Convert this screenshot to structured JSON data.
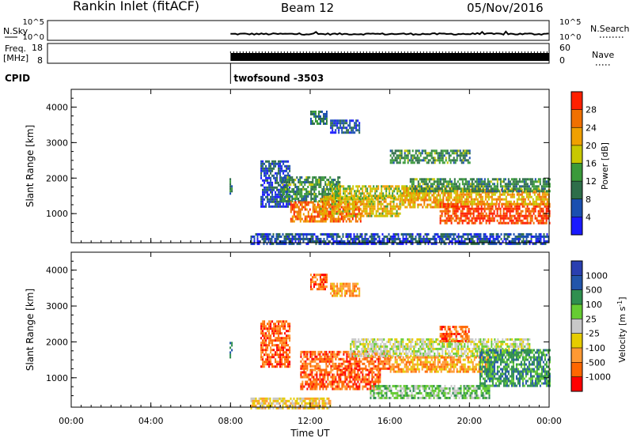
{
  "header": {
    "title": "Rankin Inlet (fitACF)",
    "beam": "Beam 12",
    "date": "05/Nov/2016"
  },
  "nsky_panel": {
    "left_label": "N.Sky",
    "right_label": "N.Search",
    "left_ticks": [
      "10^5",
      "10^0"
    ],
    "right_ticks": [
      "10^5",
      "10^0"
    ]
  },
  "freq_panel": {
    "left_label_1": "Freq.",
    "left_label_2": "[MHz]",
    "left_ticks": [
      "18",
      "8"
    ],
    "right_label": "Nave",
    "right_ticks": [
      "60",
      "0"
    ]
  },
  "cpid": {
    "label": "CPID",
    "value": "twofsound -3503"
  },
  "colors": {
    "power": [
      "#1a1aff",
      "#1a4fb0",
      "#2e6e4a",
      "#3a9a3a",
      "#c8c800",
      "#f0a000",
      "#f07000",
      "#ff2000"
    ],
    "velocity": [
      "#ff0000",
      "#ff6600",
      "#ff9933",
      "#e6cc00",
      "#c8c8c8",
      "#66cc33",
      "#2f8f4f",
      "#2255aa",
      "#2a3fb0"
    ]
  },
  "chart_data": [
    {
      "type": "heatmap",
      "name": "power",
      "ylabel": "Slant Range [km]",
      "xlabel": "",
      "xlim": [
        0,
        24
      ],
      "ylim": [
        180,
        4500
      ],
      "x_ticks": [
        0,
        4,
        8,
        12,
        16,
        20,
        24
      ],
      "y_ticks": [
        1000,
        2000,
        3000,
        4000
      ],
      "y_tick_labels": [
        "1000",
        "2000",
        "3000",
        "4000"
      ],
      "colorbar_label": "Power [dB]",
      "colorbar_ticks": [
        "4",
        "8",
        "12",
        "16",
        "20",
        "24",
        "28"
      ],
      "clim": [
        0,
        32
      ],
      "regions": [
        {
          "x": [
            7.95,
            8.1
          ],
          "y": [
            1550,
            2000
          ],
          "level": 10
        },
        {
          "x": [
            9.5,
            11.0
          ],
          "y": [
            1200,
            2500
          ],
          "level": 6
        },
        {
          "x": [
            10.5,
            13.5
          ],
          "y": [
            1350,
            2050
          ],
          "level": 12
        },
        {
          "x": [
            11.0,
            14.5
          ],
          "y": [
            750,
            1350
          ],
          "level": 26
        },
        {
          "x": [
            12.5,
            16.5
          ],
          "y": [
            900,
            1500
          ],
          "level": 20
        },
        {
          "x": [
            13.0,
            17.5
          ],
          "y": [
            1450,
            1800
          ],
          "level": 18
        },
        {
          "x": [
            16.5,
            19.5
          ],
          "y": [
            1200,
            1750
          ],
          "level": 22
        },
        {
          "x": [
            18.5,
            24.0
          ],
          "y": [
            750,
            1300
          ],
          "level": 29
        },
        {
          "x": [
            19.5,
            24.0
          ],
          "y": [
            1250,
            1700
          ],
          "level": 22
        },
        {
          "x": [
            17.0,
            24.0
          ],
          "y": [
            1650,
            2000
          ],
          "level": 12
        },
        {
          "x": [
            12.0,
            12.8
          ],
          "y": [
            3500,
            3900
          ],
          "level": 10
        },
        {
          "x": [
            13.0,
            14.5
          ],
          "y": [
            3300,
            3650
          ],
          "level": 6
        },
        {
          "x": [
            16.0,
            20.0
          ],
          "y": [
            2400,
            2800
          ],
          "level": 12
        },
        {
          "x": [
            9.0,
            24.0
          ],
          "y": [
            180,
            450
          ],
          "level": 6
        }
      ]
    },
    {
      "type": "heatmap",
      "name": "velocity",
      "ylabel": "Slant Range [km]",
      "xlabel": "Time UT",
      "xlim": [
        0,
        24
      ],
      "ylim": [
        180,
        4500
      ],
      "x_ticks": [
        0,
        4,
        8,
        12,
        16,
        20,
        24
      ],
      "x_tick_labels": [
        "00:00",
        "04:00",
        "08:00",
        "12:00",
        "16:00",
        "20:00",
        "00:00"
      ],
      "y_ticks": [
        1000,
        2000,
        3000,
        4000
      ],
      "y_tick_labels": [
        "1000",
        "2000",
        "3000",
        "4000"
      ],
      "colorbar_label": "Velocity [m s^-1]",
      "colorbar_ticks": [
        "1000",
        "500",
        "100",
        "25",
        "-25",
        "-100",
        "-500",
        "-1000"
      ],
      "regions": [
        {
          "x": [
            7.95,
            8.1
          ],
          "y": [
            1550,
            2000
          ],
          "bin": 6
        },
        {
          "x": [
            9.5,
            11.0
          ],
          "y": [
            1300,
            2600
          ],
          "bin": 1
        },
        {
          "x": [
            11.5,
            16.0
          ],
          "y": [
            1250,
            1750
          ],
          "bin": 1
        },
        {
          "x": [
            11.5,
            15.5
          ],
          "y": [
            700,
            1250
          ],
          "bin": 1
        },
        {
          "x": [
            14.0,
            23.0
          ],
          "y": [
            1600,
            2100
          ],
          "bin": 4
        },
        {
          "x": [
            16.0,
            21.0
          ],
          "y": [
            1150,
            1600
          ],
          "bin": 2
        },
        {
          "x": [
            20.5,
            24.0
          ],
          "y": [
            800,
            1800
          ],
          "bin": 6
        },
        {
          "x": [
            18.5,
            20.0
          ],
          "y": [
            2050,
            2450
          ],
          "bin": 1
        },
        {
          "x": [
            12.0,
            12.8
          ],
          "y": [
            3500,
            3900
          ],
          "bin": 1
        },
        {
          "x": [
            13.0,
            14.5
          ],
          "y": [
            3300,
            3650
          ],
          "bin": 2
        },
        {
          "x": [
            15.0,
            21.0
          ],
          "y": [
            450,
            800
          ],
          "bin": 5
        },
        {
          "x": [
            9.0,
            13.0
          ],
          "y": [
            180,
            450
          ],
          "bin": 3
        }
      ]
    }
  ]
}
